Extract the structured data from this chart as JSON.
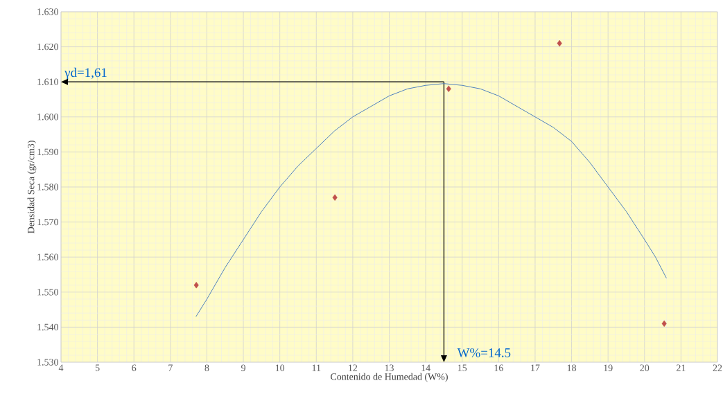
{
  "chart_data": {
    "type": "scatter",
    "xlabel": "Contenido de Humedad (W%)",
    "ylabel": "Densidad Seca  (gr/cm3)",
    "series": [
      {
        "color": "#c0504d",
        "marker": "diamond",
        "x": [
          7.71,
          11.51,
          14.63,
          17.67,
          20.54
        ],
        "values": [
          1.552,
          1.577,
          1.608,
          1.621,
          1.541
        ]
      },
      {
        "type": "line",
        "color": "#4f81bd",
        "marker": "none",
        "line_style": "solid",
        "x": [
          7.7,
          8,
          8.5,
          9,
          9.5,
          10,
          10.5,
          11,
          11.5,
          12,
          12.5,
          13,
          13.5,
          14,
          14.5,
          15,
          15.5,
          16,
          16.5,
          17,
          17.5,
          18,
          18.5,
          19,
          19.5,
          20,
          20.3,
          20.6
        ],
        "values": [
          1.543,
          1.548,
          1.557,
          1.565,
          1.573,
          1.58,
          1.586,
          1.591,
          1.596,
          1.6,
          1.603,
          1.606,
          1.608,
          1.609,
          1.6095,
          1.609,
          1.608,
          1.606,
          1.603,
          1.6,
          1.597,
          1.593,
          1.587,
          1.58,
          1.573,
          1.565,
          1.56,
          1.554
        ]
      }
    ],
    "xlim": [
      4,
      22
    ],
    "xticks": [
      4,
      5,
      6,
      7,
      8,
      9,
      10,
      11,
      12,
      13,
      14,
      15,
      16,
      17,
      18,
      19,
      20,
      21,
      22
    ],
    "ylim": [
      1.53,
      1.63
    ],
    "yticks": [
      {
        "value": 1.53,
        "label": "1.530"
      },
      {
        "value": 1.54,
        "label": "1.540"
      },
      {
        "value": 1.55,
        "label": "1.550"
      },
      {
        "value": 1.56,
        "label": "1.560"
      },
      {
        "value": 1.57,
        "label": "1.570"
      },
      {
        "value": 1.58,
        "label": "1.580"
      },
      {
        "value": 1.59,
        "label": "1.590"
      },
      {
        "value": 1.6,
        "label": "1.600"
      },
      {
        "value": 1.61,
        "label": "1.610"
      },
      {
        "value": 1.62,
        "label": "1.620"
      },
      {
        "value": 1.63,
        "label": "1.630"
      }
    ],
    "grid": true,
    "ref_lines": [
      {
        "axis": "y",
        "value": 1.61,
        "label": "γd=1,61"
      },
      {
        "axis": "x",
        "value": 14.5,
        "label": "W%=14.5"
      }
    ]
  }
}
